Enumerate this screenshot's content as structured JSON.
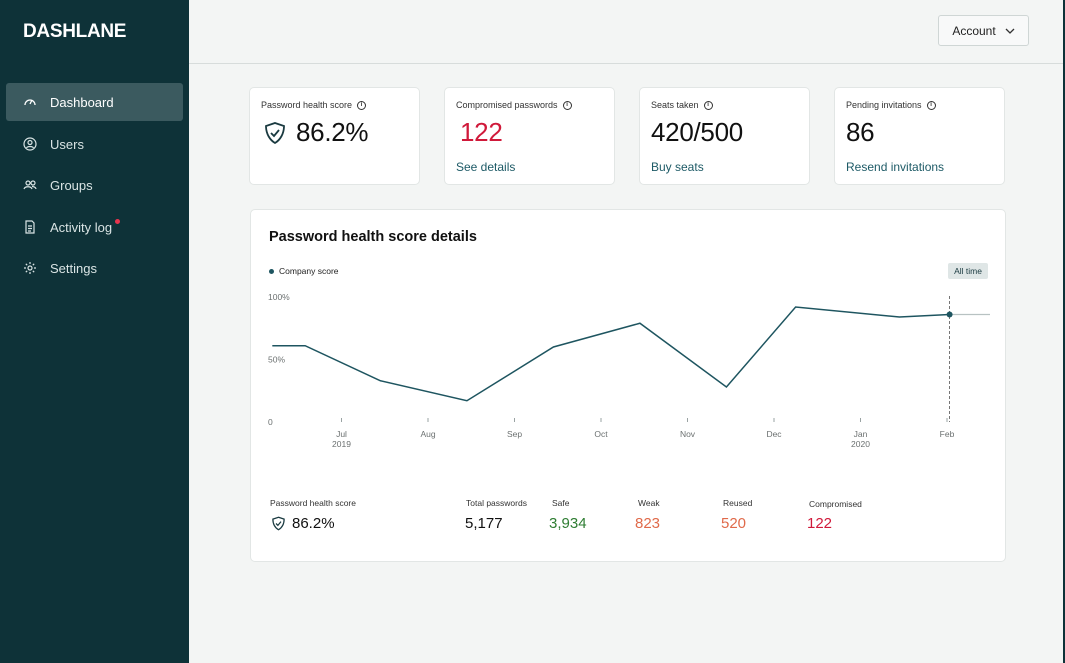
{
  "brand": "DASHLANE",
  "sidebar": {
    "items": [
      {
        "label": "Dashboard",
        "icon": "gauge-icon",
        "active": true
      },
      {
        "label": "Users",
        "icon": "user-icon"
      },
      {
        "label": "Groups",
        "icon": "group-icon"
      },
      {
        "label": "Activity log",
        "icon": "document-icon",
        "notification": true
      },
      {
        "label": "Settings",
        "icon": "gear-icon"
      }
    ]
  },
  "header": {
    "account_label": "Account"
  },
  "cards": [
    {
      "label": "Password health score",
      "value": "86.2%",
      "link": ""
    },
    {
      "label": "Compromised passwords",
      "value": "122",
      "link": "See details"
    },
    {
      "label": "Seats taken",
      "value": "420/500",
      "link": "Buy seats"
    },
    {
      "label": "Pending invitations",
      "value": "86",
      "link": "Resend invitations"
    }
  ],
  "panel": {
    "title": "Password health score details",
    "legend": "Company score",
    "range_button": "All time"
  },
  "chart_data": {
    "type": "line",
    "series": [
      {
        "name": "Company score",
        "values": [
          61,
          61,
          33,
          17,
          60,
          79,
          28,
          92,
          84,
          86
        ]
      }
    ],
    "x": [
      0.2,
      0.58,
      1.45,
      2.45,
      3.45,
      4.45,
      5.45,
      6.25,
      7.45,
      8.03
    ],
    "ylim": [
      0,
      100
    ],
    "yticks": [
      "0",
      "50%",
      "100%"
    ],
    "xticks": [
      {
        "label": "Jul",
        "sub": "2019",
        "pos": 1
      },
      {
        "label": "Aug",
        "sub": "",
        "pos": 2
      },
      {
        "label": "Sep",
        "sub": "",
        "pos": 3
      },
      {
        "label": "Oct",
        "sub": "",
        "pos": 4
      },
      {
        "label": "Nov",
        "sub": "",
        "pos": 5
      },
      {
        "label": "Dec",
        "sub": "",
        "pos": 6
      },
      {
        "label": "Jan",
        "sub": "2020",
        "pos": 7
      },
      {
        "label": "Feb",
        "sub": "",
        "pos": 8
      }
    ],
    "color": "#1e5560"
  },
  "stats": {
    "score_label": "Password health score",
    "score_value": "86.2%",
    "total_label": "Total passwords",
    "total_value": "5,177",
    "safe_label": "Safe",
    "safe_value": "3,934",
    "weak_label": "Weak",
    "weak_value": "823",
    "reused_label": "Reused",
    "reused_value": "520",
    "compromised_label": "Compromised",
    "compromised_value": "122"
  },
  "colors": {
    "sidebar": "#0e3238",
    "red": "#d0193a",
    "green": "#2e7d32",
    "orange": "#e06a4a",
    "link": "#1d5a66"
  }
}
